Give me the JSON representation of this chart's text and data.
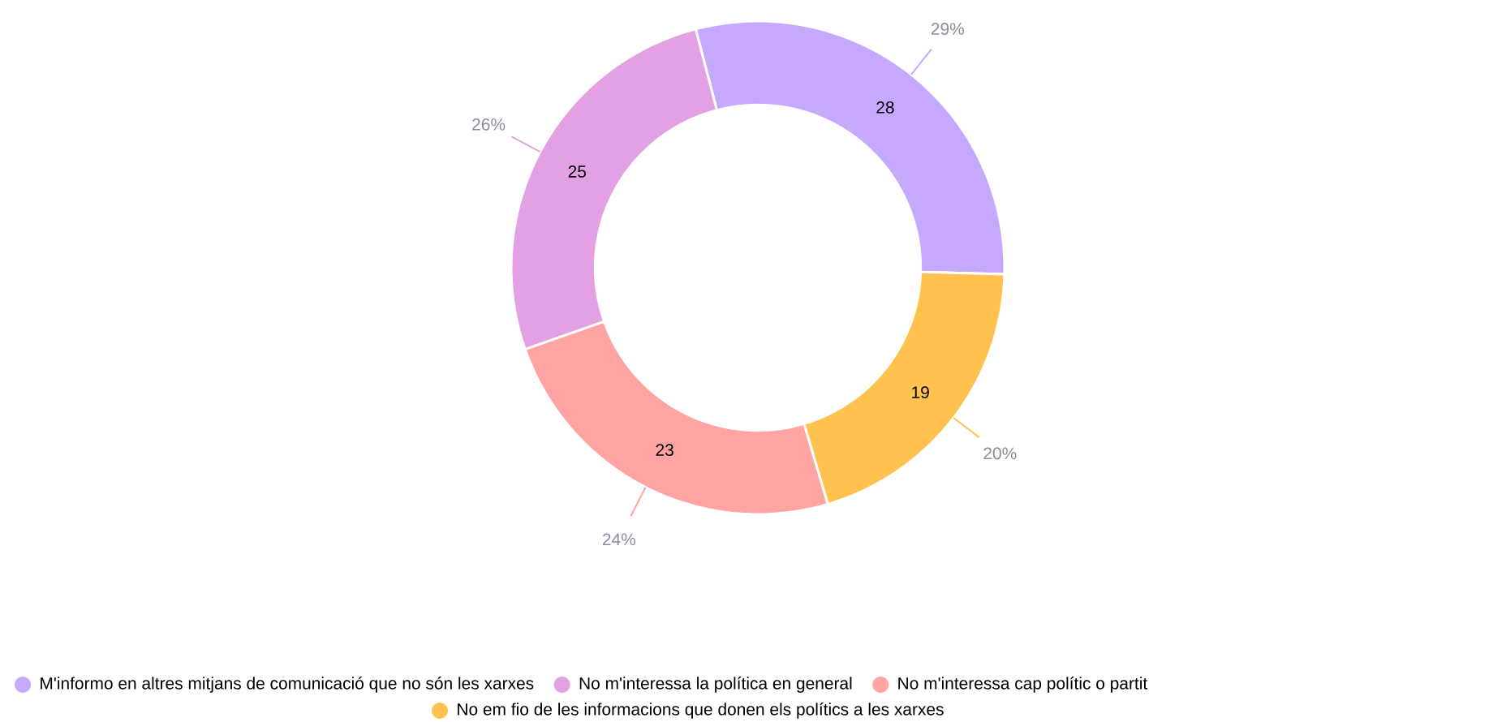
{
  "chart_data": {
    "type": "donut",
    "categories": [
      "M'informo en altres mitjans de comunicació que no són les xarxes",
      "No m'interessa la política en general",
      "No m'interessa cap polític o partit",
      "No em fio de les informacions que donen els polítics a les xarxes"
    ],
    "values": [
      28,
      25,
      23,
      19
    ],
    "value_labels": [
      "28",
      "25",
      "23",
      "19"
    ],
    "annotations": [
      "29%",
      "26%",
      "24%",
      "20%"
    ],
    "colors": [
      "#c7a8ff",
      "#e3a0e3",
      "#ffa3a3",
      "#ffc24f"
    ],
    "legend": "bottom"
  }
}
